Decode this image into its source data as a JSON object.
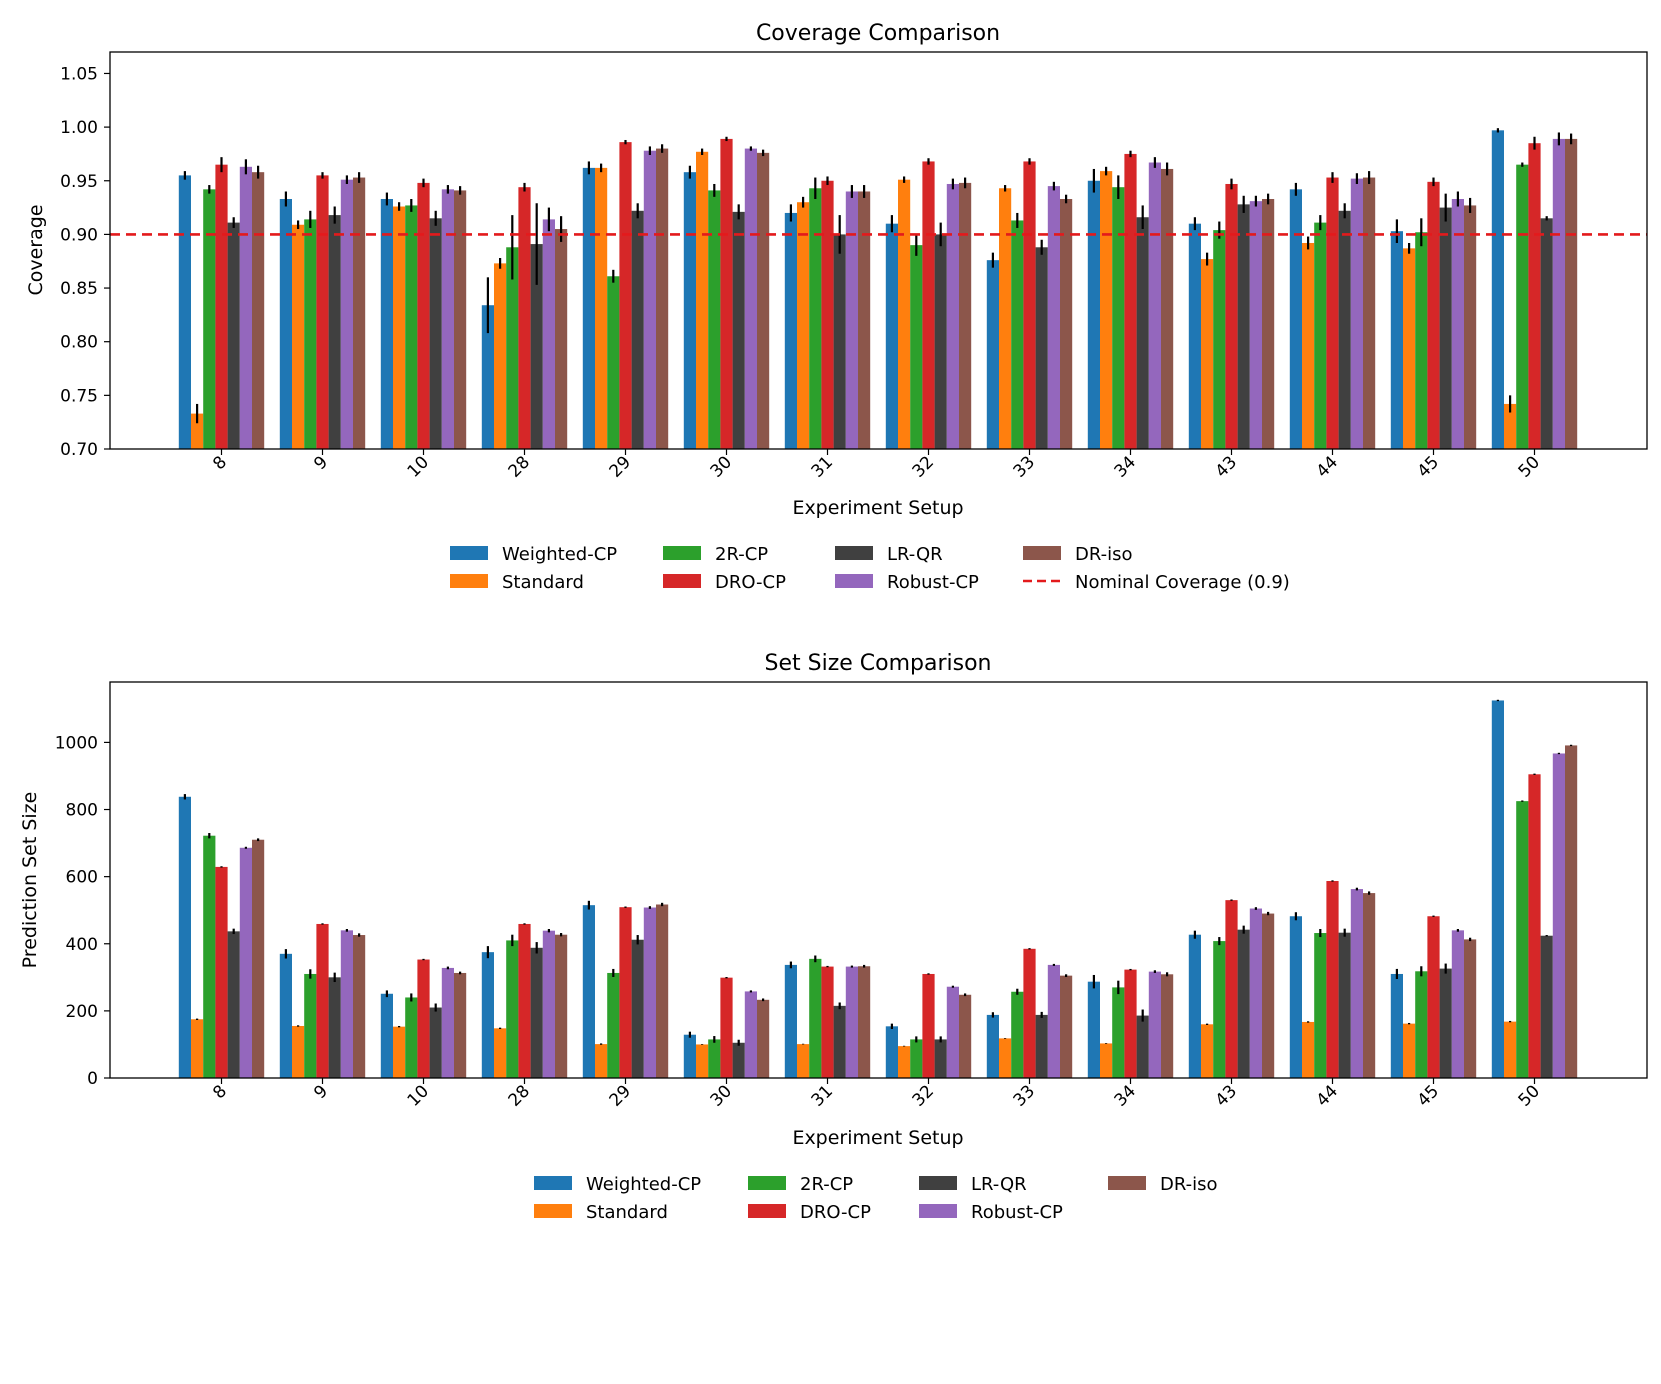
{
  "colors": {
    "Weighted-CP": "#1f77b4",
    "Standard": "#ff7f0e",
    "2R-CP": "#2ca02c",
    "DRO-CP": "#d62728",
    "LR-QR": "#404040",
    "Robust-CP": "#9467bd",
    "DR-iso": "#8c564b",
    "nominal_line": "#e31a1c"
  },
  "chart_data": [
    {
      "type": "bar",
      "title": "Coverage Comparison",
      "xlabel": "Experiment Setup",
      "ylabel": "Coverage",
      "ylim": [
        0.7,
        1.07
      ],
      "yticks": [
        "0.70",
        "0.75",
        "0.80",
        "0.85",
        "0.90",
        "0.95",
        "1.00",
        "1.05"
      ],
      "categories": [
        "8",
        "9",
        "10",
        "28",
        "29",
        "30",
        "31",
        "32",
        "33",
        "34",
        "43",
        "44",
        "45",
        "50"
      ],
      "grid": false,
      "legend_position": "below",
      "reference_line": {
        "y": 0.9,
        "label": "Nominal Coverage (0.9)",
        "style": "dashed"
      },
      "series": [
        {
          "name": "Weighted-CP",
          "values": [
            0.955,
            0.933,
            0.933,
            0.834,
            0.962,
            0.958,
            0.92,
            0.91,
            0.876,
            0.95,
            0.91,
            0.942,
            0.903,
            0.997
          ],
          "errors": [
            0.004,
            0.007,
            0.006,
            0.026,
            0.006,
            0.006,
            0.008,
            0.008,
            0.007,
            0.011,
            0.006,
            0.006,
            0.011,
            0.002
          ]
        },
        {
          "name": "Standard",
          "values": [
            0.733,
            0.909,
            0.926,
            0.873,
            0.962,
            0.977,
            0.93,
            0.951,
            0.943,
            0.959,
            0.877,
            0.892,
            0.887,
            0.742
          ],
          "errors": [
            0.009,
            0.004,
            0.004,
            0.005,
            0.004,
            0.003,
            0.005,
            0.003,
            0.003,
            0.004,
            0.006,
            0.006,
            0.005,
            0.008
          ]
        },
        {
          "name": "2R-CP",
          "values": [
            0.942,
            0.914,
            0.927,
            0.888,
            0.861,
            0.941,
            0.943,
            0.89,
            0.913,
            0.944,
            0.904,
            0.911,
            0.902,
            0.965
          ],
          "errors": [
            0.004,
            0.008,
            0.006,
            0.03,
            0.006,
            0.006,
            0.01,
            0.01,
            0.007,
            0.011,
            0.008,
            0.007,
            0.013,
            0.002
          ]
        },
        {
          "name": "DRO-CP",
          "values": [
            0.965,
            0.955,
            0.948,
            0.944,
            0.986,
            0.989,
            0.95,
            0.968,
            0.968,
            0.975,
            0.947,
            0.953,
            0.949,
            0.985
          ],
          "errors": [
            0.007,
            0.003,
            0.004,
            0.004,
            0.002,
            0.002,
            0.004,
            0.003,
            0.003,
            0.003,
            0.005,
            0.005,
            0.004,
            0.006
          ]
        },
        {
          "name": "LR-QR",
          "values": [
            0.911,
            0.918,
            0.915,
            0.891,
            0.922,
            0.921,
            0.9,
            0.9,
            0.888,
            0.916,
            0.928,
            0.922,
            0.925,
            0.915
          ],
          "errors": [
            0.005,
            0.008,
            0.007,
            0.038,
            0.007,
            0.007,
            0.018,
            0.011,
            0.007,
            0.011,
            0.008,
            0.007,
            0.013,
            0.002
          ]
        },
        {
          "name": "Robust-CP",
          "values": [
            0.963,
            0.951,
            0.942,
            0.914,
            0.978,
            0.98,
            0.94,
            0.947,
            0.945,
            0.967,
            0.931,
            0.952,
            0.933,
            0.989
          ],
          "errors": [
            0.007,
            0.004,
            0.004,
            0.011,
            0.004,
            0.002,
            0.006,
            0.005,
            0.004,
            0.005,
            0.005,
            0.005,
            0.007,
            0.006
          ]
        },
        {
          "name": "DR-iso",
          "values": [
            0.958,
            0.953,
            0.941,
            0.905,
            0.98,
            0.976,
            0.94,
            0.948,
            0.933,
            0.961,
            0.933,
            0.953,
            0.927,
            0.989
          ],
          "errors": [
            0.006,
            0.005,
            0.004,
            0.012,
            0.004,
            0.003,
            0.006,
            0.005,
            0.004,
            0.006,
            0.005,
            0.006,
            0.007,
            0.005
          ]
        }
      ]
    },
    {
      "type": "bar",
      "title": "Set Size Comparison",
      "xlabel": "Experiment Setup",
      "ylabel": "Prediction Set Size",
      "ylim": [
        0,
        1180
      ],
      "yticks": [
        "0",
        "200",
        "400",
        "600",
        "800",
        "1000"
      ],
      "categories": [
        "8",
        "9",
        "10",
        "28",
        "29",
        "30",
        "31",
        "32",
        "33",
        "34",
        "43",
        "44",
        "45",
        "50"
      ],
      "grid": false,
      "legend_position": "below",
      "series": [
        {
          "name": "Weighted-CP",
          "values": [
            838,
            370,
            251,
            375,
            515,
            129,
            337,
            154,
            188,
            287,
            427,
            482,
            310,
            1125
          ],
          "errors": [
            8,
            14,
            10,
            18,
            13,
            9,
            10,
            8,
            8,
            20,
            12,
            12,
            15,
            2
          ]
        },
        {
          "name": "Standard",
          "values": [
            175,
            155,
            153,
            148,
            101,
            100,
            101,
            95,
            118,
            103,
            160,
            167,
            162,
            168
          ],
          "errors": [
            2,
            2,
            2,
            2,
            2,
            1,
            1,
            1,
            1,
            1,
            2,
            2,
            2,
            2
          ]
        },
        {
          "name": "2R-CP",
          "values": [
            722,
            310,
            240,
            410,
            313,
            115,
            355,
            115,
            257,
            270,
            408,
            432,
            318,
            825
          ],
          "errors": [
            8,
            14,
            12,
            17,
            12,
            10,
            10,
            9,
            9,
            20,
            12,
            12,
            15,
            2
          ]
        },
        {
          "name": "DRO-CP",
          "values": [
            629,
            459,
            353,
            459,
            509,
            299,
            332,
            310,
            385,
            323,
            530,
            587,
            482,
            905
          ],
          "errors": [
            2,
            2,
            2,
            2,
            2,
            2,
            2,
            2,
            2,
            2,
            2,
            2,
            2,
            2
          ]
        },
        {
          "name": "LR-QR",
          "values": [
            437,
            300,
            210,
            388,
            412,
            105,
            215,
            115,
            188,
            186,
            442,
            433,
            326,
            424
          ],
          "errors": [
            8,
            14,
            12,
            17,
            14,
            9,
            10,
            9,
            9,
            18,
            12,
            12,
            15,
            2
          ]
        },
        {
          "name": "Robust-CP",
          "values": [
            686,
            440,
            328,
            439,
            508,
            258,
            332,
            272,
            337,
            317,
            505,
            563,
            440,
            967
          ],
          "errors": [
            3,
            4,
            4,
            5,
            4,
            3,
            3,
            3,
            3,
            4,
            4,
            4,
            4,
            2
          ]
        },
        {
          "name": "DR-iso",
          "values": [
            710,
            426,
            313,
            427,
            517,
            233,
            333,
            248,
            305,
            309,
            490,
            551,
            413,
            991
          ],
          "errors": [
            4,
            5,
            4,
            5,
            5,
            4,
            4,
            4,
            4,
            6,
            5,
            5,
            5,
            2
          ]
        }
      ]
    }
  ]
}
